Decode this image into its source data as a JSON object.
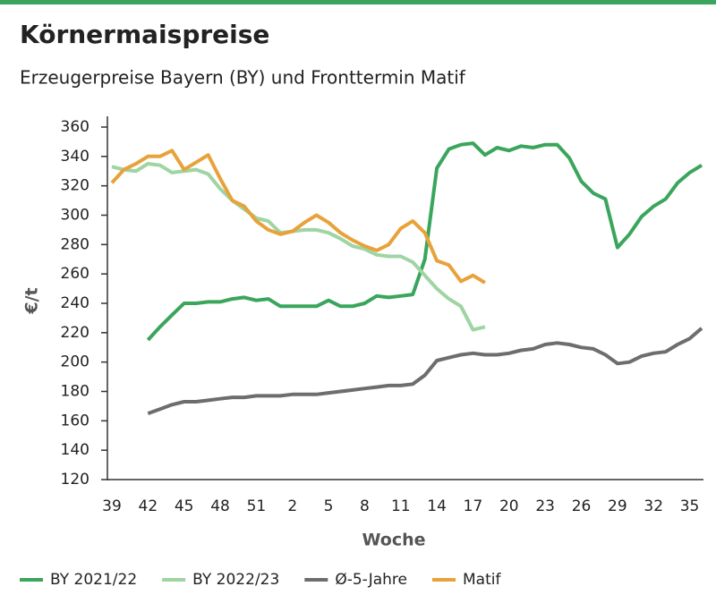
{
  "chart_data": {
    "type": "line",
    "title": "Körnermaispreise",
    "subtitle": "Erzeugerpreise Bayern (BY) und Fronttermin Matif",
    "y_label": "€/t",
    "x_label": "Woche",
    "categories": [
      "39",
      null,
      null,
      "42",
      null,
      null,
      "45",
      null,
      null,
      "48",
      null,
      null,
      "51",
      null,
      null,
      "2",
      null,
      null,
      "5",
      null,
      null,
      "8",
      null,
      null,
      "11",
      null,
      null,
      "14",
      null,
      null,
      "17",
      null,
      null,
      "20",
      null,
      null,
      "23",
      null,
      null,
      "26",
      null,
      null,
      "29",
      null,
      null,
      "32",
      null,
      null,
      "35",
      null
    ],
    "ylim": [
      120,
      360
    ],
    "yticks": [
      120,
      140,
      160,
      180,
      200,
      220,
      240,
      260,
      280,
      300,
      320,
      340,
      360
    ],
    "grid": false,
    "legend": "bottom",
    "series": [
      {
        "name": "BY 2021/22",
        "color": "#3aa55c",
        "values": [
          null,
          null,
          null,
          215,
          224,
          232,
          240,
          240,
          241,
          241,
          243,
          244,
          242,
          243,
          238,
          238,
          238,
          238,
          242,
          238,
          238,
          240,
          245,
          244,
          245,
          246,
          270,
          332,
          345,
          348,
          349,
          341,
          346,
          344,
          347,
          346,
          348,
          348,
          339,
          323,
          315,
          311,
          278,
          287,
          299,
          306,
          311,
          322,
          329,
          334
        ]
      },
      {
        "name": "BY 2022/23",
        "color": "#9fd4a3",
        "values": [
          333,
          331,
          330,
          335,
          334,
          329,
          330,
          331,
          328,
          318,
          310,
          304,
          298,
          296,
          288,
          289,
          290,
          290,
          288,
          284,
          279,
          277,
          273,
          272,
          272,
          268,
          259,
          250,
          243,
          238,
          222,
          224,
          null,
          null,
          null,
          null,
          null,
          null,
          null,
          null,
          null,
          null,
          null,
          null,
          null,
          null,
          null,
          null,
          null,
          null
        ]
      },
      {
        "name": "Ø-5-Jahre",
        "color": "#6d6d6d",
        "values": [
          null,
          null,
          null,
          165,
          168,
          171,
          173,
          173,
          174,
          175,
          176,
          176,
          177,
          177,
          177,
          178,
          178,
          178,
          179,
          180,
          181,
          182,
          183,
          184,
          184,
          185,
          191,
          201,
          203,
          205,
          206,
          205,
          205,
          206,
          208,
          209,
          212,
          213,
          212,
          210,
          209,
          205,
          199,
          200,
          204,
          206,
          207,
          212,
          216,
          223
        ]
      },
      {
        "name": "Matif",
        "color": "#e8a23a",
        "values": [
          322,
          331,
          335,
          340,
          340,
          344,
          331,
          336,
          341,
          325,
          310,
          306,
          296,
          290,
          287,
          289,
          295,
          300,
          295,
          288,
          283,
          279,
          276,
          280,
          291,
          296,
          288,
          269,
          266,
          255,
          259,
          254,
          null,
          null,
          null,
          null,
          null,
          null,
          null,
          null,
          null,
          null,
          null,
          null,
          null,
          null,
          null,
          null,
          null,
          null
        ]
      }
    ]
  }
}
